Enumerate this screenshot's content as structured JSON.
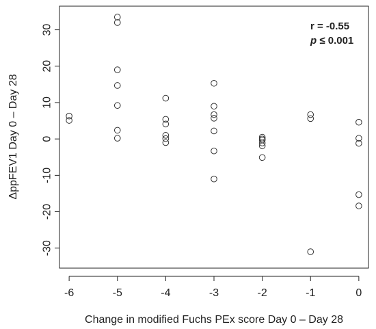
{
  "chart_data": {
    "type": "scatter",
    "title": "",
    "xlabel": "Change in modified Fuchs PEx score Day 0 – Day 28",
    "ylabel": "ΔppFEV1 Day 0 – Day 28",
    "xlim": [
      -6.2,
      0.2
    ],
    "ylim": [
      -35.5,
      36.5
    ],
    "xticks": [
      -6,
      -5,
      -4,
      -3,
      -2,
      -1,
      0
    ],
    "xtick_labels": [
      "-6",
      "-5",
      "-4",
      "-3",
      "-2",
      "-1",
      "0"
    ],
    "yticks": [
      -30,
      -20,
      -10,
      0,
      10,
      20,
      30
    ],
    "ytick_labels": [
      "-30",
      "-20",
      "-10",
      "0",
      "10",
      "20",
      "30"
    ],
    "grid": false,
    "marker": "open-circle",
    "points": [
      {
        "x": -6,
        "y": 6.3
      },
      {
        "x": -6,
        "y": 5.1
      },
      {
        "x": -5,
        "y": 33.5
      },
      {
        "x": -5,
        "y": 32.0
      },
      {
        "x": -5,
        "y": 19.0
      },
      {
        "x": -5,
        "y": 14.7
      },
      {
        "x": -5,
        "y": 9.2
      },
      {
        "x": -5,
        "y": 2.4
      },
      {
        "x": -5,
        "y": 0.2
      },
      {
        "x": -4,
        "y": 11.2
      },
      {
        "x": -4,
        "y": 5.4
      },
      {
        "x": -4,
        "y": 4.1
      },
      {
        "x": -4,
        "y": 1.0
      },
      {
        "x": -4,
        "y": 0.1
      },
      {
        "x": -4,
        "y": -1.0
      },
      {
        "x": -3,
        "y": 15.3
      },
      {
        "x": -3,
        "y": 9.0
      },
      {
        "x": -3,
        "y": 6.7
      },
      {
        "x": -3,
        "y": 5.7
      },
      {
        "x": -3,
        "y": 2.2
      },
      {
        "x": -3,
        "y": -3.3
      },
      {
        "x": -3,
        "y": -11.0
      },
      {
        "x": -2,
        "y": 0.5
      },
      {
        "x": -2,
        "y": 0.0
      },
      {
        "x": -2,
        "y": -0.3
      },
      {
        "x": -2,
        "y": -1.1
      },
      {
        "x": -2,
        "y": -1.9
      },
      {
        "x": -2,
        "y": -5.1
      },
      {
        "x": -1,
        "y": 6.7
      },
      {
        "x": -1,
        "y": 5.6
      },
      {
        "x": -1,
        "y": -31.0
      },
      {
        "x": 0,
        "y": 4.6
      },
      {
        "x": 0,
        "y": 0.2
      },
      {
        "x": 0,
        "y": -1.2
      },
      {
        "x": 0,
        "y": -15.3
      },
      {
        "x": 0,
        "y": -18.4
      }
    ],
    "annotations": {
      "r_text": "r = -0.55",
      "p_symbol": "p",
      "p_text": " ≤ 0.001",
      "placement": "top-right"
    }
  }
}
